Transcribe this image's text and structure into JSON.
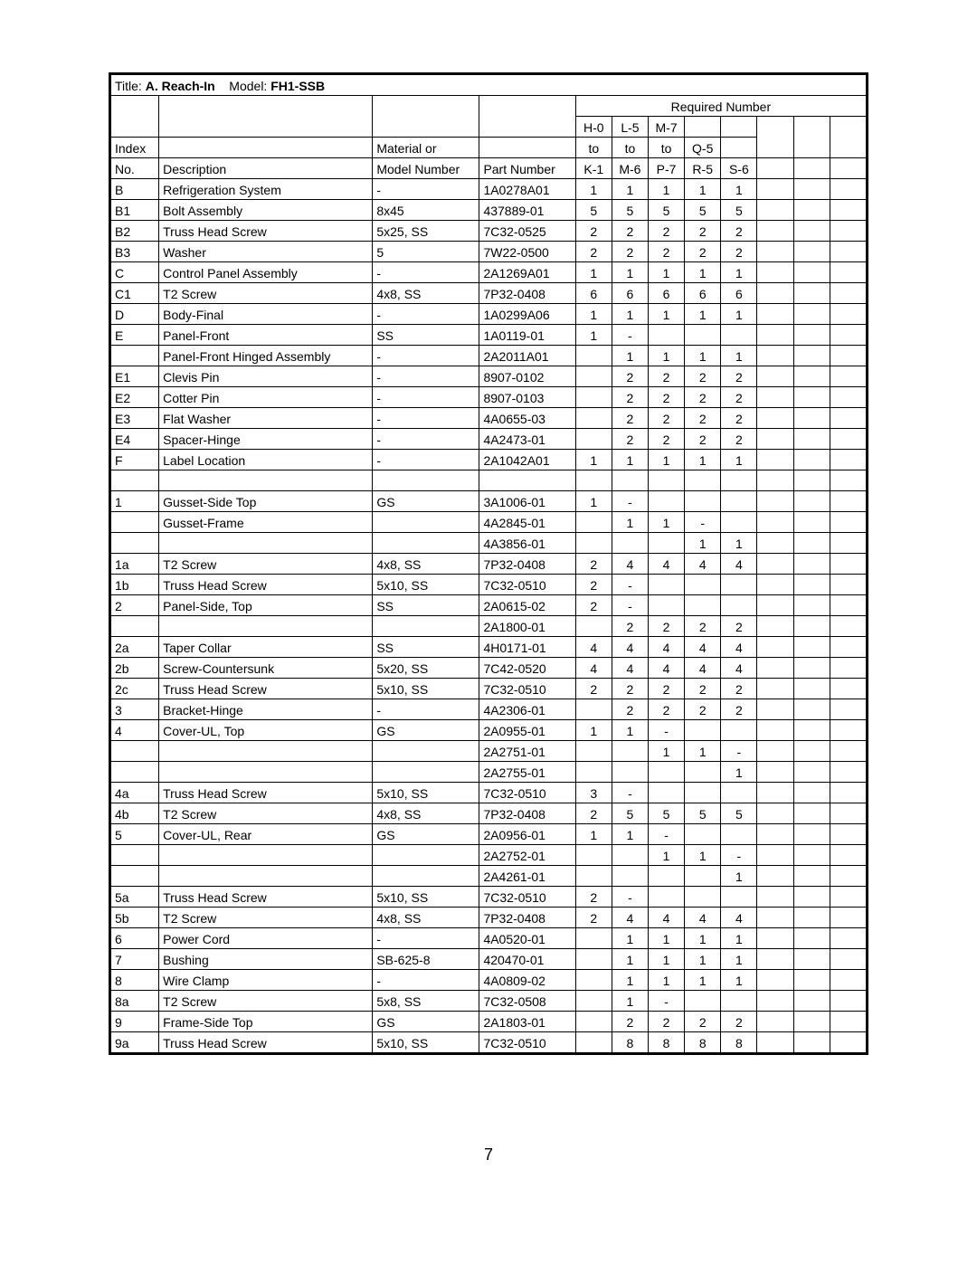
{
  "title_label": "Title:",
  "title_value": "A. Reach-In",
  "model_label": "Model:",
  "model_value": "FH1-SSB",
  "required_number_label": "Required Number",
  "header_index_1": "Index",
  "header_index_2": "No.",
  "header_desc": "Description",
  "header_mat_1": "Material or",
  "header_mat_2": "Model Number",
  "header_part": "Part Number",
  "q_headers": {
    "c1a": "H-0",
    "c1b": "to",
    "c1c": "K-1",
    "c2a": "L-5",
    "c2b": "to",
    "c2c": "M-6",
    "c3a": "M-7",
    "c3b": "to",
    "c3c": "P-7",
    "c4a": "",
    "c4b": "Q-5",
    "c4c": "R-5",
    "c5a": "",
    "c5b": "",
    "c5c": "S-6"
  },
  "rows": [
    {
      "idx": "B",
      "desc": "Refrigeration System",
      "mat": "-",
      "part": "1A0278A01",
      "q": [
        "1",
        "1",
        "1",
        "1",
        "1"
      ]
    },
    {
      "idx": "B1",
      "desc": "Bolt Assembly",
      "mat": "8x45",
      "part": "437889-01",
      "q": [
        "5",
        "5",
        "5",
        "5",
        "5"
      ]
    },
    {
      "idx": "B2",
      "desc": "Truss Head Screw",
      "mat": "5x25, SS",
      "part": "7C32-0525",
      "q": [
        "2",
        "2",
        "2",
        "2",
        "2"
      ]
    },
    {
      "idx": "B3",
      "desc": "Washer",
      "mat": "5",
      "part": "7W22-0500",
      "q": [
        "2",
        "2",
        "2",
        "2",
        "2"
      ]
    },
    {
      "idx": "C",
      "desc": "Control Panel Assembly",
      "mat": "-",
      "part": "2A1269A01",
      "q": [
        "1",
        "1",
        "1",
        "1",
        "1"
      ]
    },
    {
      "idx": "C1",
      "desc": "T2 Screw",
      "mat": "4x8, SS",
      "part": "7P32-0408",
      "q": [
        "6",
        "6",
        "6",
        "6",
        "6"
      ]
    },
    {
      "idx": "D",
      "desc": "Body-Final",
      "mat": "-",
      "part": "1A0299A06",
      "q": [
        "1",
        "1",
        "1",
        "1",
        "1"
      ]
    },
    {
      "idx": "E",
      "desc": "Panel-Front",
      "mat": "SS",
      "part": "1A0119-01",
      "q": [
        "1",
        "-",
        "",
        "",
        ""
      ]
    },
    {
      "idx": "",
      "desc": "Panel-Front Hinged Assembly",
      "mat": "-",
      "part": "2A2011A01",
      "q": [
        "",
        "1",
        "1",
        "1",
        "1"
      ]
    },
    {
      "idx": "E1",
      "desc": "Clevis Pin",
      "mat": "-",
      "part": "8907-0102",
      "q": [
        "",
        "2",
        "2",
        "2",
        "2"
      ]
    },
    {
      "idx": "E2",
      "desc": "Cotter Pin",
      "mat": "-",
      "part": "8907-0103",
      "q": [
        "",
        "2",
        "2",
        "2",
        "2"
      ]
    },
    {
      "idx": "E3",
      "desc": "Flat Washer",
      "mat": "-",
      "part": "4A0655-03",
      "q": [
        "",
        "2",
        "2",
        "2",
        "2"
      ]
    },
    {
      "idx": "E4",
      "desc": "Spacer-Hinge",
      "mat": "-",
      "part": "4A2473-01",
      "q": [
        "",
        "2",
        "2",
        "2",
        "2"
      ]
    },
    {
      "idx": "F",
      "desc": "Label Location",
      "mat": "-",
      "part": "2A1042A01",
      "q": [
        "1",
        "1",
        "1",
        "1",
        "1"
      ]
    },
    {
      "spacer": true
    },
    {
      "idx": "1",
      "desc": "Gusset-Side Top",
      "mat": "GS",
      "part": "3A1006-01",
      "q": [
        "1",
        "-",
        "",
        "",
        ""
      ]
    },
    {
      "idx": "",
      "desc": "Gusset-Frame",
      "mat": "",
      "part": "4A2845-01",
      "q": [
        "",
        "1",
        "1",
        "-",
        ""
      ]
    },
    {
      "idx": "",
      "desc": "",
      "mat": "",
      "part": "4A3856-01",
      "q": [
        "",
        "",
        "",
        "1",
        "1"
      ]
    },
    {
      "idx": "1a",
      "desc": "T2 Screw",
      "mat": "4x8, SS",
      "part": "7P32-0408",
      "q": [
        "2",
        "4",
        "4",
        "4",
        "4"
      ]
    },
    {
      "idx": "1b",
      "desc": "Truss Head Screw",
      "mat": "5x10, SS",
      "part": "7C32-0510",
      "q": [
        "2",
        "-",
        "",
        "",
        ""
      ]
    },
    {
      "idx": "2",
      "desc": "Panel-Side, Top",
      "mat": "SS",
      "part": "2A0615-02",
      "q": [
        "2",
        "-",
        "",
        "",
        ""
      ]
    },
    {
      "idx": "",
      "desc": "",
      "mat": "",
      "part": "2A1800-01",
      "q": [
        "",
        "2",
        "2",
        "2",
        "2"
      ]
    },
    {
      "idx": "2a",
      "desc": "Taper Collar",
      "mat": "SS",
      "part": "4H0171-01",
      "q": [
        "4",
        "4",
        "4",
        "4",
        "4"
      ]
    },
    {
      "idx": "2b",
      "desc": "Screw-Countersunk",
      "mat": "5x20, SS",
      "part": "7C42-0520",
      "q": [
        "4",
        "4",
        "4",
        "4",
        "4"
      ]
    },
    {
      "idx": "2c",
      "desc": "Truss Head Screw",
      "mat": "5x10, SS",
      "part": "7C32-0510",
      "q": [
        "2",
        "2",
        "2",
        "2",
        "2"
      ]
    },
    {
      "idx": "3",
      "desc": "Bracket-Hinge",
      "mat": "-",
      "part": "4A2306-01",
      "q": [
        "",
        "2",
        "2",
        "2",
        "2"
      ]
    },
    {
      "idx": "4",
      "desc": "Cover-UL, Top",
      "mat": "GS",
      "part": "2A0955-01",
      "q": [
        "1",
        "1",
        "-",
        "",
        ""
      ]
    },
    {
      "idx": "",
      "desc": "",
      "mat": "",
      "part": "2A2751-01",
      "q": [
        "",
        "",
        "1",
        "1",
        "-"
      ]
    },
    {
      "idx": "",
      "desc": "",
      "mat": "",
      "part": "2A2755-01",
      "q": [
        "",
        "",
        "",
        "",
        "1"
      ]
    },
    {
      "idx": "4a",
      "desc": "Truss Head Screw",
      "mat": "5x10, SS",
      "part": "7C32-0510",
      "q": [
        "3",
        "-",
        "",
        "",
        ""
      ]
    },
    {
      "idx": "4b",
      "desc": "T2 Screw",
      "mat": "4x8, SS",
      "part": "7P32-0408",
      "q": [
        "2",
        "5",
        "5",
        "5",
        "5"
      ]
    },
    {
      "idx": "5",
      "desc": "Cover-UL, Rear",
      "mat": "GS",
      "part": "2A0956-01",
      "q": [
        "1",
        "1",
        "-",
        "",
        ""
      ]
    },
    {
      "idx": "",
      "desc": "",
      "mat": "",
      "part": "2A2752-01",
      "q": [
        "",
        "",
        "1",
        "1",
        "-"
      ]
    },
    {
      "idx": "",
      "desc": "",
      "mat": "",
      "part": "2A4261-01",
      "q": [
        "",
        "",
        "",
        "",
        "1"
      ]
    },
    {
      "idx": "5a",
      "desc": "Truss Head Screw",
      "mat": "5x10, SS",
      "part": "7C32-0510",
      "q": [
        "2",
        "-",
        "",
        "",
        ""
      ]
    },
    {
      "idx": "5b",
      "desc": "T2 Screw",
      "mat": "4x8, SS",
      "part": "7P32-0408",
      "q": [
        "2",
        "4",
        "4",
        "4",
        "4"
      ]
    },
    {
      "idx": "6",
      "desc": "Power Cord",
      "mat": "-",
      "part": "4A0520-01",
      "q": [
        "",
        "1",
        "1",
        "1",
        "1"
      ]
    },
    {
      "idx": "7",
      "desc": "Bushing",
      "mat": "SB-625-8",
      "part": "420470-01",
      "q": [
        "",
        "1",
        "1",
        "1",
        "1"
      ]
    },
    {
      "idx": "8",
      "desc": "Wire Clamp",
      "mat": "-",
      "part": "4A0809-02",
      "q": [
        "",
        "1",
        "1",
        "1",
        "1"
      ]
    },
    {
      "idx": "8a",
      "desc": "T2 Screw",
      "mat": "5x8, SS",
      "part": "7C32-0508",
      "q": [
        "",
        "1",
        "-",
        "",
        ""
      ]
    },
    {
      "idx": "9",
      "desc": "Frame-Side Top",
      "mat": "GS",
      "part": "2A1803-01",
      "q": [
        "",
        "2",
        "2",
        "2",
        "2"
      ]
    },
    {
      "idx": "9a",
      "desc": "Truss Head Screw",
      "mat": "5x10, SS",
      "part": "7C32-0510",
      "q": [
        "",
        "8",
        "8",
        "8",
        "8"
      ]
    }
  ],
  "page_number": "7"
}
